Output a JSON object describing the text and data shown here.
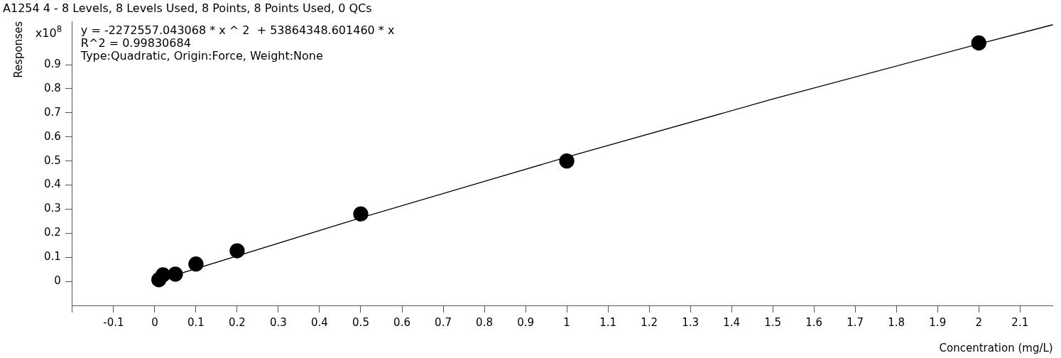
{
  "chart_data": {
    "type": "scatter",
    "title": "A1254 4 - 8 Levels, 8 Levels Used, 8 Points, 8 Points Used, 0 QCs",
    "xlabel": "Concentration (mg/L)",
    "ylabel": "Responses",
    "annotations": [
      "x10$^{8}$",
      "y = -2272557.043068 * x ^ 2  + 53864348.601460 * x",
      "R^2 = 0.99830684",
      "Type:Quadratic, Origin:Force, Weight:None"
    ],
    "x": [
      0.01,
      0.02,
      0.05,
      0.1,
      0.2,
      0.5,
      1,
      2
    ],
    "series": [
      {
        "color": "#000000",
        "marker": "circle",
        "values": [
          0.007,
          0.027,
          0.03,
          0.072,
          0.127,
          0.28,
          0.5,
          0.99
        ]
      },
      {
        "type": "line",
        "color": "#000000",
        "marker": "none",
        "line_style": "solid",
        "x": [
          0,
          0.5,
          1,
          1.5,
          2,
          2.18
        ],
        "values": [
          0,
          0.264,
          0.516,
          0.757,
          0.986,
          1.066
        ]
      }
    ],
    "xlim": [
      -0.2,
      2.18
    ],
    "xticks": [
      {
        "value": -0.2,
        "label": null
      },
      -0.1,
      0,
      0.1,
      0.2,
      0.3,
      0.4,
      0.5,
      0.6,
      0.7,
      0.8,
      0.9,
      1,
      1.1,
      1.2,
      1.3,
      1.4,
      1.5,
      1.6,
      1.7,
      1.8,
      1.9,
      2,
      2.1
    ],
    "ylim": [
      -0.1,
      1.08
    ],
    "yticks": [
      0,
      0.1,
      0.2,
      0.3,
      0.4,
      0.5,
      0.6,
      0.7,
      0.8,
      0.9
    ],
    "grid": false,
    "legend": false
  }
}
